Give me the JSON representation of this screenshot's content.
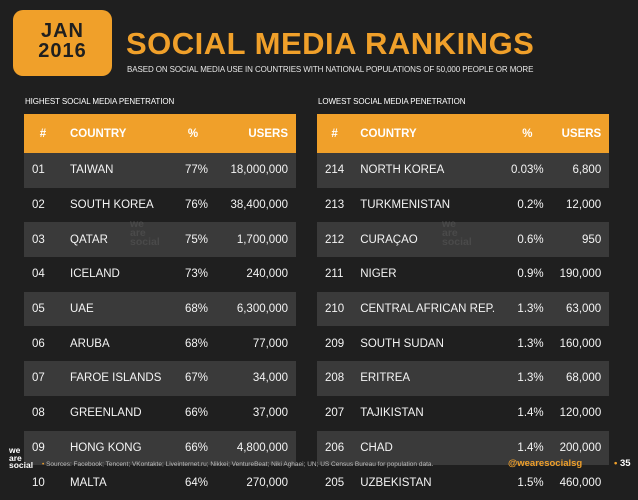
{
  "date": {
    "month": "JAN",
    "year": "2016"
  },
  "header": {
    "title": "SOCIAL MEDIA RANKINGS",
    "subtitle": "BASED ON SOCIAL MEDIA USE IN COUNTRIES WITH NATIONAL POPULATIONS OF 50,000 PEOPLE OR MORE"
  },
  "left": {
    "label": "HIGHEST SOCIAL MEDIA PENETRATION",
    "columns": [
      "#",
      "COUNTRY",
      "%",
      "USERS"
    ],
    "rows": [
      [
        "01",
        "TAIWAN",
        "77%",
        "18,000,000"
      ],
      [
        "02",
        "SOUTH KOREA",
        "76%",
        "38,400,000"
      ],
      [
        "03",
        "QATAR",
        "75%",
        "1,700,000"
      ],
      [
        "04",
        "ICELAND",
        "73%",
        "240,000"
      ],
      [
        "05",
        "UAE",
        "68%",
        "6,300,000"
      ],
      [
        "06",
        "ARUBA",
        "68%",
        "77,000"
      ],
      [
        "07",
        "FAROE ISLANDS",
        "67%",
        "34,000"
      ],
      [
        "08",
        "GREENLAND",
        "66%",
        "37,000"
      ],
      [
        "09",
        "HONG KONG",
        "66%",
        "4,800,000"
      ],
      [
        "10",
        "MALTA",
        "64%",
        "270,000"
      ]
    ]
  },
  "right": {
    "label": "LOWEST SOCIAL MEDIA PENETRATION",
    "columns": [
      "#",
      "COUNTRY",
      "%",
      "USERS"
    ],
    "rows": [
      [
        "214",
        "NORTH KOREA",
        "0.03%",
        "6,800"
      ],
      [
        "213",
        "TURKMENISTAN",
        "0.2%",
        "12,000"
      ],
      [
        "212",
        "CURAÇAO",
        "0.6%",
        "950"
      ],
      [
        "211",
        "NIGER",
        "0.9%",
        "190,000"
      ],
      [
        "210",
        "CENTRAL AFRICAN REP.",
        "1.3%",
        "63,000"
      ],
      [
        "209",
        "SOUTH SUDAN",
        "1.3%",
        "160,000"
      ],
      [
        "208",
        "ERITREA",
        "1.3%",
        "68,000"
      ],
      [
        "207",
        "TAJIKISTAN",
        "1.4%",
        "120,000"
      ],
      [
        "206",
        "CHAD",
        "1.4%",
        "200,000"
      ],
      [
        "205",
        "UZBEKISTAN",
        "1.5%",
        "460,000"
      ]
    ]
  },
  "watermark": {
    "line1": "we",
    "line2": "are",
    "line3": "social"
  },
  "footer": {
    "logo_line1": "we",
    "logo_line2": "are",
    "logo_line3": "social",
    "sources": "Sources: Facebook; Tencent; VKontakte; Liveinternet.ru; Nikkei; VentureBeat; Niki Aghaei; UN; US Census Bureau for population data.",
    "handle": "@wearesocialsg",
    "page": "35"
  },
  "colors": {
    "accent": "#f0a02a",
    "background": "#1f1f1f",
    "stripe": "#3a3a3a"
  }
}
